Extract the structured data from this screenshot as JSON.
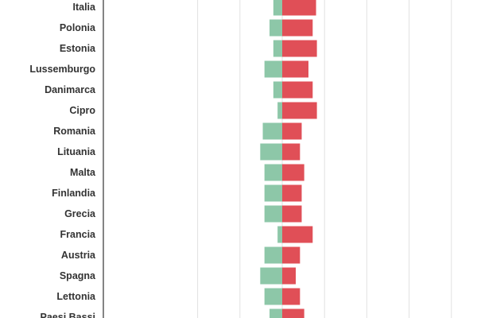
{
  "chart_data": {
    "type": "bar",
    "orientation": "horizontal",
    "stacking": "diverging",
    "grid": true,
    "categories": [
      "Italia",
      "Polonia",
      "Estonia",
      "Lussemburgo",
      "Danimarca",
      "Cipro",
      "Romania",
      "Lituania",
      "Malta",
      "Finlandia",
      "Grecia",
      "Francia",
      "Austria",
      "Spagna",
      "Lettonia",
      "Paesi Bassi"
    ],
    "series": [
      {
        "color": "#8dc7a8",
        "direction": "left",
        "values": [
          2.1,
          3.0,
          2.1,
          4.2,
          2.1,
          1.1,
          4.6,
          5.2,
          4.2,
          4.2,
          4.2,
          1.1,
          4.2,
          5.2,
          4.2,
          3.0
        ]
      },
      {
        "color": "#e04f57",
        "direction": "right",
        "values": [
          8.0,
          7.2,
          8.2,
          6.2,
          7.2,
          8.2,
          4.6,
          4.2,
          5.2,
          4.6,
          4.6,
          7.2,
          4.2,
          3.2,
          4.2,
          5.2
        ]
      }
    ],
    "xlim": [
      -20,
      40
    ],
    "grid_step": 10,
    "title": "",
    "xlabel": "",
    "ylabel": ""
  }
}
